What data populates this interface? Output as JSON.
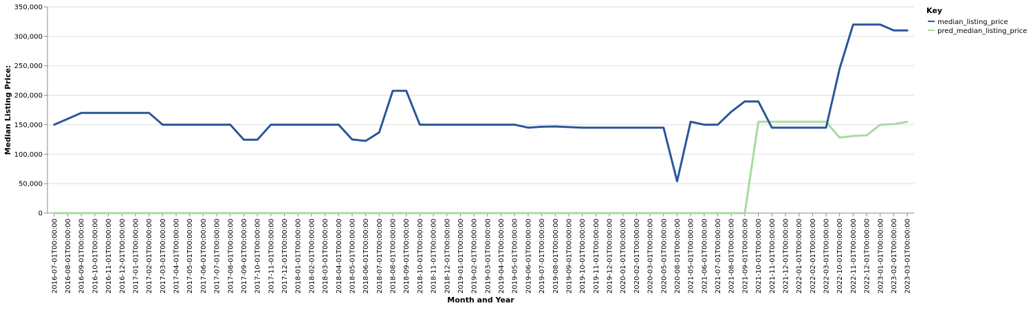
{
  "chart_data": {
    "type": "line",
    "xlabel": "Month and Year",
    "ylabel": "Median Listing Price:",
    "ylim": [
      0,
      350000
    ],
    "yticks": [
      0,
      50000,
      100000,
      150000,
      200000,
      250000,
      300000,
      350000
    ],
    "ytick_labels": [
      "0",
      "50,000",
      "100,000",
      "150,000",
      "200,000",
      "250,000",
      "300,000",
      "350,000"
    ],
    "grid": true,
    "legend": {
      "title": "Key",
      "placement": "right"
    },
    "x": [
      "2016-07-01T00:00:00",
      "2016-08-01T00:00:00",
      "2016-09-01T00:00:00",
      "2016-10-01T00:00:00",
      "2016-11-01T00:00:00",
      "2016-12-01T00:00:00",
      "2017-01-01T00:00:00",
      "2017-02-01T00:00:00",
      "2017-03-01T00:00:00",
      "2017-04-01T00:00:00",
      "2017-05-01T00:00:00",
      "2017-06-01T00:00:00",
      "2017-07-01T00:00:00",
      "2017-08-01T00:00:00",
      "2017-09-01T00:00:00",
      "2017-10-01T00:00:00",
      "2017-11-01T00:00:00",
      "2017-12-01T00:00:00",
      "2018-01-01T00:00:00",
      "2018-02-01T00:00:00",
      "2018-03-01T00:00:00",
      "2018-04-01T00:00:00",
      "2018-05-01T00:00:00",
      "2018-06-01T00:00:00",
      "2018-07-01T00:00:00",
      "2018-08-01T00:00:00",
      "2018-09-01T00:00:00",
      "2018-10-01T00:00:00",
      "2018-11-01T00:00:00",
      "2018-12-01T00:00:00",
      "2019-01-01T00:00:00",
      "2019-02-01T00:00:00",
      "2019-03-01T00:00:00",
      "2019-04-01T00:00:00",
      "2019-05-01T00:00:00",
      "2019-06-01T00:00:00",
      "2019-07-01T00:00:00",
      "2019-08-01T00:00:00",
      "2019-09-01T00:00:00",
      "2019-10-01T00:00:00",
      "2019-11-01T00:00:00",
      "2019-12-01T00:00:00",
      "2020-01-01T00:00:00",
      "2020-02-01T00:00:00",
      "2020-03-01T00:00:00",
      "2020-05-01T00:00:00",
      "2020-08-01T00:00:00",
      "2021-05-01T00:00:00",
      "2021-06-01T00:00:00",
      "2021-07-01T00:00:00",
      "2021-08-01T00:00:00",
      "2021-09-01T00:00:00",
      "2021-10-01T00:00:00",
      "2021-11-01T00:00:00",
      "2021-12-01T00:00:00",
      "2022-01-01T00:00:00",
      "2022-02-01T00:00:00",
      "2022-03-01T00:00:00",
      "2022-10-01T00:00:00",
      "2022-11-01T00:00:00",
      "2022-12-01T00:00:00",
      "2023-01-01T00:00:00",
      "2023-02-01T00:00:00",
      "2023-03-01T00:00:00"
    ],
    "series": [
      {
        "name": "median_listing_price",
        "color": "#2a5599",
        "values": [
          150000,
          160000,
          170000,
          170000,
          170000,
          170000,
          170000,
          170000,
          150000,
          150000,
          150000,
          150000,
          150000,
          150000,
          124500,
          124500,
          150000,
          150000,
          150000,
          150000,
          150000,
          150000,
          125000,
          122500,
          137000,
          207500,
          207500,
          150000,
          150000,
          150000,
          150000,
          150000,
          150000,
          150000,
          150000,
          145000,
          146500,
          147000,
          146000,
          145000,
          145000,
          145000,
          145000,
          145000,
          145000,
          145000,
          54000,
          155000,
          150000,
          150000,
          172000,
          189500,
          189500,
          145000,
          145000,
          145000,
          145000,
          145000,
          245000,
          320000,
          320000,
          320000,
          310000,
          310000
        ]
      },
      {
        "name": "pred_median_listing_price",
        "color": "#a6dba0",
        "values": [
          0,
          0,
          0,
          0,
          0,
          0,
          0,
          0,
          0,
          0,
          0,
          0,
          0,
          0,
          0,
          0,
          0,
          0,
          0,
          0,
          0,
          0,
          0,
          0,
          0,
          0,
          0,
          0,
          0,
          0,
          0,
          0,
          0,
          0,
          0,
          0,
          0,
          0,
          0,
          0,
          0,
          0,
          0,
          0,
          0,
          0,
          0,
          0,
          0,
          0,
          0,
          0,
          155000,
          155000,
          155000,
          155000,
          155000,
          155000,
          128000,
          131000,
          132000,
          150000,
          151000,
          155000
        ]
      }
    ]
  }
}
